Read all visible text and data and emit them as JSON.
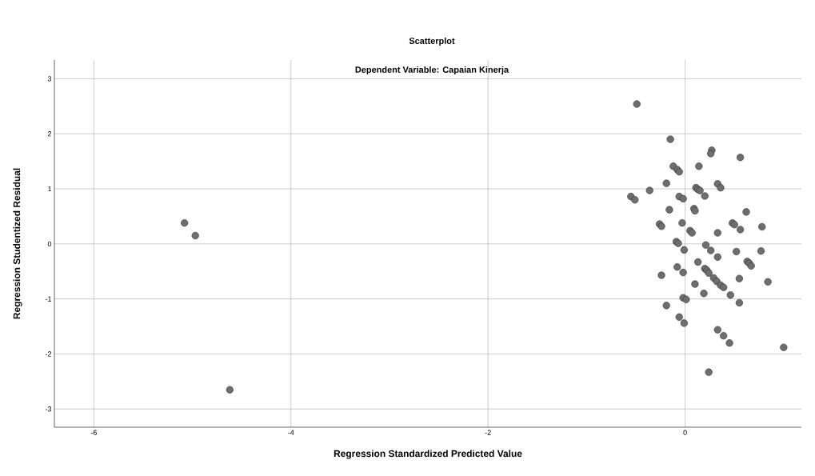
{
  "chart_data": {
    "type": "scatter",
    "title": "Scatterplot",
    "subtitle": "Dependent Variable: Capaian Kinerja",
    "xlabel": "Regression Standardized Predicted Value",
    "ylabel": "Regression Studentized Residual",
    "xlim": [
      -6.4,
      1.18
    ],
    "ylim": [
      -3.33,
      3.34
    ],
    "xticks": [
      -6,
      -4,
      -2,
      0
    ],
    "yticks": [
      -3,
      -2,
      -1,
      0,
      1,
      2,
      3
    ],
    "grid": true,
    "series": [
      {
        "color": "#6e6e6e",
        "x": [
          -5.08,
          -4.97,
          -4.62,
          -0.49,
          -0.15,
          0.27,
          0.26,
          0.56,
          -0.12,
          -0.08,
          -0.06,
          0.14,
          -0.19,
          0.33,
          0.36,
          -0.36,
          0.11,
          0.13,
          0.15,
          0.2,
          -0.55,
          -0.51,
          -0.06,
          -0.02,
          -0.16,
          0.09,
          0.1,
          0.62,
          -0.26,
          -0.24,
          -0.03,
          0.48,
          0.5,
          0.56,
          0.78,
          0.05,
          0.07,
          0.33,
          -0.09,
          -0.07,
          0.21,
          -0.01,
          0.26,
          0.52,
          0.77,
          0.33,
          0.13,
          0.63,
          0.65,
          0.67,
          -0.08,
          -0.02,
          -0.24,
          0.2,
          0.22,
          0.24,
          0.29,
          0.32,
          0.36,
          0.39,
          0.55,
          0.84,
          0.1,
          0.19,
          0.46,
          -0.02,
          0.01,
          0.55,
          -0.19,
          -0.06,
          -0.01,
          0.33,
          0.39,
          0.45,
          1.0,
          0.24
        ],
        "values": [
          0.38,
          0.15,
          -2.65,
          2.54,
          1.9,
          1.7,
          1.64,
          1.57,
          1.41,
          1.35,
          1.31,
          1.41,
          1.1,
          1.09,
          1.02,
          0.97,
          1.02,
          0.99,
          0.97,
          0.87,
          0.86,
          0.8,
          0.86,
          0.82,
          0.62,
          0.64,
          0.6,
          0.58,
          0.36,
          0.32,
          0.38,
          0.38,
          0.35,
          0.26,
          0.31,
          0.24,
          0.2,
          0.2,
          0.04,
          0.01,
          -0.02,
          -0.11,
          -0.12,
          -0.14,
          -0.13,
          -0.24,
          -0.33,
          -0.32,
          -0.35,
          -0.4,
          -0.42,
          -0.52,
          -0.57,
          -0.45,
          -0.48,
          -0.53,
          -0.62,
          -0.68,
          -0.75,
          -0.79,
          -0.63,
          -0.69,
          -0.73,
          -0.9,
          -0.93,
          -0.98,
          -1.01,
          -1.07,
          -1.12,
          -1.33,
          -1.44,
          -1.56,
          -1.67,
          -1.8,
          -1.88,
          -2.33
        ]
      }
    ]
  }
}
